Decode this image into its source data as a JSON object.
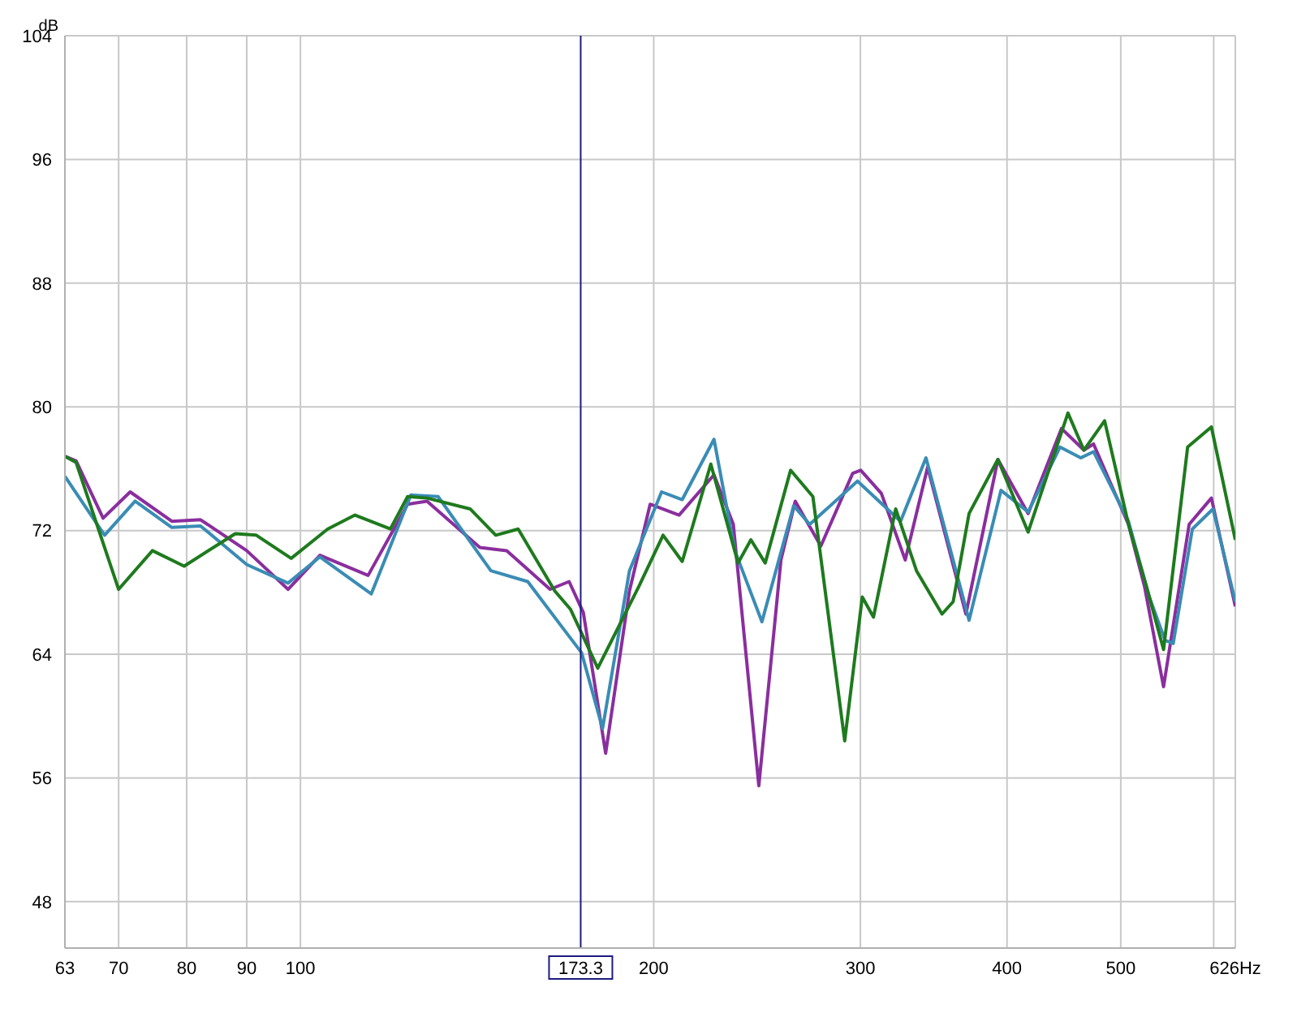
{
  "chart_data": {
    "type": "line",
    "ylabel": "dB",
    "xlim": [
      63,
      626
    ],
    "ylim": [
      45,
      104
    ],
    "log": "x",
    "grid": true,
    "line_style": "solid",
    "xticks": [
      63,
      70,
      80,
      90,
      100,
      200,
      300,
      400,
      500,
      {
        "value": 600,
        "label": null
      },
      {
        "value": 626,
        "label": "626Hz"
      }
    ],
    "yticks": [
      48,
      56,
      64,
      72,
      80,
      88,
      96,
      104
    ],
    "ref_lines": [
      {
        "axis": "x",
        "value": 173.3,
        "label": "173.3",
        "color": "#1c1c80"
      }
    ],
    "series": [
      {
        "color": "#8a2e9e",
        "x": [
          63,
          64.4,
          67.9,
          71.6,
          77.7,
          82.2,
          90.0,
          97.6,
          103.9,
          114.2,
          123.4,
          128.2,
          142.2,
          149.9,
          163.2,
          169.4,
          174.2,
          182.0,
          190.7,
          198.6,
          210.2,
          225.1,
          233.8,
          245.8,
          256.7,
          264.0,
          277.6,
          295.5,
          300.2,
          312.6,
          327.6,
          342.3,
          369.0,
          392.9,
          416.9,
          445.1,
          465.1,
          474.0,
          507.6,
          523.8,
          543.8,
          571.8,
          597.3,
          626
        ],
        "values": [
          76.8,
          76.5,
          72.8,
          74.5,
          72.6,
          72.7,
          70.7,
          68.2,
          70.4,
          69.1,
          73.7,
          73.9,
          70.9,
          70.7,
          68.2,
          68.7,
          66.7,
          57.6,
          68.1,
          73.7,
          73.0,
          75.6,
          72.4,
          55.5,
          70.1,
          73.9,
          71.0,
          75.7,
          75.9,
          74.4,
          70.1,
          76.1,
          66.6,
          76.6,
          73.1,
          78.6,
          77.2,
          77.6,
          72.4,
          68.4,
          61.9,
          72.4,
          74.1,
          67.1
        ]
      },
      {
        "color": "#3a8cb4",
        "x": [
          63,
          68.1,
          72.3,
          77.7,
          82.2,
          90.0,
          97.6,
          103.9,
          114.9,
          124.2,
          131.0,
          145.3,
          156.2,
          167.3,
          173.6,
          180.9,
          190.7,
          203.1,
          211.5,
          225.1,
          234.5,
          247.3,
          263.2,
          271.6,
          298.3,
          324.6,
          341.2,
          371.3,
          395.3,
          416.9,
          443.8,
          462.2,
          474.0,
          507.6,
          528.8,
          545.4,
          554.2,
          575.4,
          599.2,
          626
        ],
        "values": [
          75.5,
          71.7,
          73.9,
          72.2,
          72.3,
          69.8,
          68.6,
          70.3,
          67.9,
          74.3,
          74.2,
          69.4,
          68.7,
          65.7,
          64.1,
          59.2,
          69.4,
          74.5,
          74.0,
          77.9,
          70.7,
          66.1,
          73.6,
          72.4,
          75.2,
          72.6,
          76.7,
          66.2,
          74.6,
          73.2,
          77.4,
          76.7,
          77.1,
          72.6,
          67.7,
          64.9,
          64.7,
          72.1,
          73.4,
          67.4
        ]
      },
      {
        "color": "#1e7a1e",
        "x": [
          63,
          64.4,
          70.0,
          74.8,
          79.6,
          88.0,
          91.7,
          98.2,
          105.5,
          111.3,
          119.3,
          123.4,
          128.2,
          139.5,
          146.7,
          153.3,
          164.7,
          169.9,
          179.2,
          194.3,
          203.7,
          211.5,
          223.7,
          236.0,
          242.0,
          248.9,
          261.6,
          273.3,
          290.9,
          301.1,
          307.8,
          321.5,
          334.9,
          352.1,
          359.9,
          371.3,
          392.9,
          416.9,
          450.8,
          465.1,
          484.4,
          507.6,
          527.1,
          543.8,
          570.1,
          597.3,
          626
        ],
        "values": [
          76.8,
          76.4,
          68.2,
          70.7,
          69.7,
          71.8,
          71.7,
          70.2,
          72.1,
          73.0,
          72.1,
          74.2,
          74.1,
          73.4,
          71.7,
          72.1,
          68.1,
          66.9,
          63.1,
          68.4,
          71.7,
          70.0,
          76.3,
          69.9,
          71.4,
          69.9,
          75.9,
          74.2,
          58.4,
          67.7,
          66.4,
          73.4,
          69.4,
          66.6,
          67.4,
          73.1,
          76.6,
          71.9,
          79.6,
          77.2,
          79.1,
          72.4,
          68.1,
          64.3,
          77.4,
          78.7,
          71.4
        ]
      }
    ]
  }
}
